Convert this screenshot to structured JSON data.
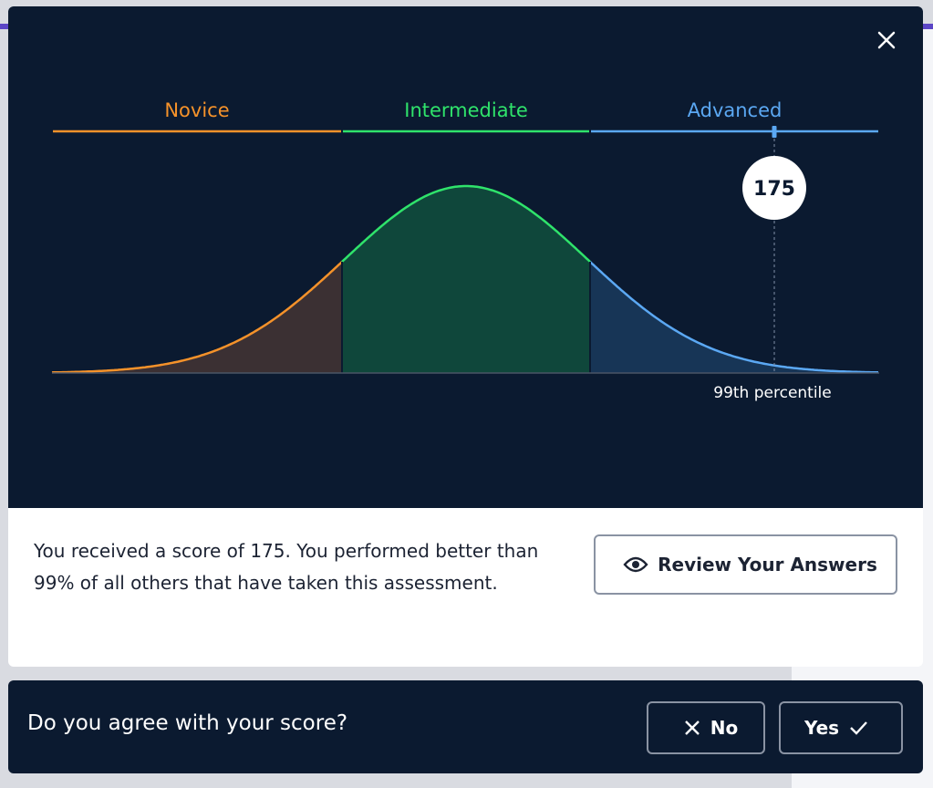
{
  "modal": {
    "levels": [
      "Novice",
      "Intermediate",
      "Advanced"
    ],
    "score": "175",
    "percentile": "99th percentile",
    "message": "You received a score of 175. You performed better than 99% of all others that have taken this assessment.",
    "review_button": "Review Your Answers"
  },
  "prompt": {
    "question": "Do you agree with your score?",
    "no_button": "No",
    "yes_button": "Yes"
  }
}
